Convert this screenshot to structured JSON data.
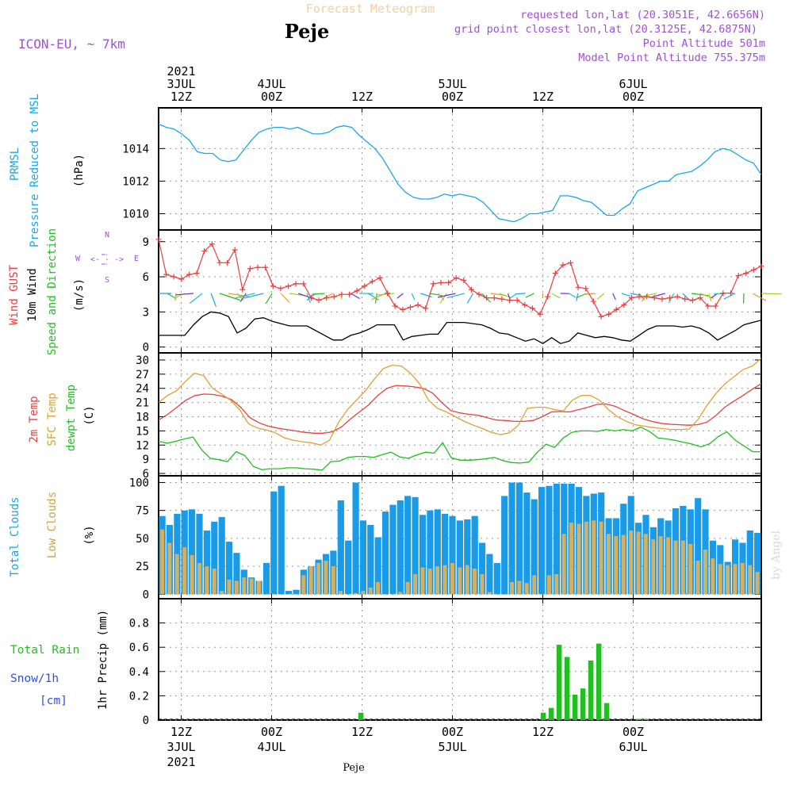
{
  "header": {
    "top_title": "Forecast Meteogram",
    "location": "Peje",
    "model": "ICON-EU, ~ 7km",
    "requested": "requested lon,lat (20.3051E, 42.6656N)",
    "grid_point": "grid point closest lon,lat (20.3125E, 42.6875N)",
    "point_altitude": "Point Altitude 501m",
    "model_altitude": "Model Point Altitude 755.375m",
    "footer_location": "Peje",
    "watermark": "by Angel"
  },
  "colors": {
    "pressure": "#1aa6e6",
    "gust": "#e84040",
    "wind": "#000000",
    "t2m": "#e84040",
    "sfc": "#e0a030",
    "dewpt": "#20c020",
    "total_clouds": "#1a9be8",
    "low_clouds": "#d4b060",
    "rain": "#20c020",
    "snow": "#3050e0",
    "meta": "#a050d0"
  },
  "time_axis": {
    "top_labels": [
      {
        "t": 3,
        "lines": [
          "2021",
          "3JUL",
          "12Z"
        ]
      },
      {
        "t": 15,
        "lines": [
          "4JUL",
          "00Z"
        ]
      },
      {
        "t": 27,
        "lines": [
          "12Z"
        ]
      },
      {
        "t": 39,
        "lines": [
          "5JUL",
          "00Z"
        ]
      },
      {
        "t": 51,
        "lines": [
          "12Z"
        ]
      },
      {
        "t": 63,
        "lines": [
          "6JUL",
          "00Z"
        ]
      }
    ],
    "bottom_labels": [
      {
        "t": 3,
        "lines": [
          "12Z",
          "3JUL",
          "2021"
        ]
      },
      {
        "t": 15,
        "lines": [
          "00Z",
          "4JUL"
        ]
      },
      {
        "t": 27,
        "lines": [
          "12Z"
        ]
      },
      {
        "t": 39,
        "lines": [
          "00Z",
          "5JUL"
        ]
      },
      {
        "t": 51,
        "lines": [
          "12Z"
        ]
      },
      {
        "t": 63,
        "lines": [
          "00Z",
          "6JUL"
        ]
      }
    ]
  },
  "panel_labels": {
    "pressure": {
      "l1": "PRMSL",
      "l2": "Pressure Reduced to MSL",
      "unit": "(hPa)"
    },
    "wind": {
      "l1": "Wind GUST",
      "l2": "10m Wind",
      "l3": "Speed and Direction",
      "unit": "(m/s)",
      "compass": {
        "n": "N",
        "s": "S",
        "w": "W",
        "e": "E",
        "arrows_h": "<- - ->",
        "arrows_v": "! !"
      }
    },
    "temp": {
      "l1": "2m Temp",
      "l2": "SFC Temp",
      "l3": "dewpt Temp",
      "unit": "(C)"
    },
    "clouds": {
      "l1": "Total Clouds",
      "l2": "Low Clouds",
      "unit": "(%)"
    },
    "precip": {
      "l1": "Total Rain",
      "l2": "Snow/1h",
      "l3": "[cm]",
      "unit": "1hr Precip (mm)"
    }
  },
  "chart_data": [
    {
      "type": "line",
      "name": "pressure",
      "x_unit": "hours after 2021-07-03 09Z",
      "ylim": [
        1009,
        1016.5
      ],
      "yticks": [
        1010,
        1012,
        1014
      ],
      "grid": true,
      "series": [
        {
          "name": "PRMSL",
          "values": [
            1015.5,
            1015.3,
            1015.2,
            1014.9,
            1014.5,
            1013.8,
            1013.7,
            1013.7,
            1013.3,
            1013.2,
            1013.3,
            1013.9,
            1014.5,
            1015.0,
            1015.2,
            1015.3,
            1015.3,
            1015.2,
            1015.3,
            1015.1,
            1014.9,
            1014.9,
            1015.0,
            1015.3,
            1015.4,
            1015.3,
            1014.8,
            1014.4,
            1014.0,
            1013.4,
            1012.6,
            1011.8,
            1011.3,
            1011.0,
            1010.9,
            1010.9,
            1011.0,
            1011.2,
            1011.1,
            1011.2,
            1011.1,
            1011.0,
            1010.7,
            1010.2,
            1009.7,
            1009.6,
            1009.5,
            1009.7,
            1010.0,
            1010.0,
            1010.1,
            1010.2,
            1011.1,
            1011.1,
            1011.0,
            1010.8,
            1010.7,
            1010.3,
            1009.9,
            1009.9,
            1010.3,
            1010.6,
            1011.4,
            1011.6,
            1011.8,
            1012.0,
            1012.0,
            1012.4,
            1012.5,
            1012.6,
            1012.9,
            1013.3,
            1013.8,
            1014.0,
            1013.9,
            1013.6,
            1013.3,
            1013.1,
            1012.4
          ]
        }
      ]
    },
    {
      "type": "line",
      "name": "wind",
      "x_unit": "hours after 2021-07-03 09Z",
      "ylim": [
        -0.5,
        10
      ],
      "yticks": [
        0,
        3,
        6,
        9
      ],
      "grid": true,
      "series": [
        {
          "name": "Wind GUST",
          "values": [
            9.2,
            6.2,
            6.0,
            5.8,
            6.2,
            6.3,
            8.2,
            8.8,
            7.2,
            7.2,
            8.3,
            4.9,
            6.7,
            6.8,
            6.8,
            5.2,
            5.0,
            5.2,
            5.4,
            5.4,
            4.2,
            4.0,
            4.2,
            4.3,
            4.5,
            4.5,
            4.8,
            5.2,
            5.6,
            5.9,
            4.6,
            3.5,
            3.2,
            3.4,
            3.6,
            3.3,
            5.4,
            5.5,
            5.5,
            5.9,
            5.7,
            4.9,
            4.5,
            4.2,
            4.2,
            4.1,
            4.0,
            4.0,
            3.6,
            3.3,
            2.8,
            4.3,
            6.3,
            7.0,
            7.2,
            5.1,
            5.0,
            3.9,
            2.6,
            2.8,
            3.2,
            3.6,
            4.2,
            4.3,
            4.3,
            4.2,
            4.1,
            4.2,
            4.3,
            4.1,
            4.0,
            4.2,
            3.5,
            3.5,
            4.6,
            4.6,
            6.1,
            6.3,
            6.6,
            6.9
          ]
        },
        {
          "name": "10m Wind",
          "values": [
            1.0,
            1.0,
            1.0,
            1.0,
            1.9,
            2.6,
            3.0,
            2.9,
            2.6,
            1.2,
            1.6,
            2.4,
            2.5,
            2.2,
            2.0,
            1.8,
            1.8,
            1.8,
            1.4,
            1.0,
            0.6,
            0.6,
            1.0,
            1.2,
            1.5,
            1.9,
            1.9,
            1.9,
            0.6,
            0.9,
            1.0,
            1.1,
            1.1,
            2.1,
            2.1,
            2.1,
            2.0,
            1.9,
            1.6,
            1.2,
            1.1,
            0.8,
            0.5,
            0.7,
            0.3,
            0.8,
            0.3,
            0.5,
            1.2,
            1.0,
            0.8,
            0.9,
            0.8,
            0.6,
            0.5,
            1.0,
            1.5,
            1.8,
            1.8,
            1.8,
            1.7,
            1.8,
            1.6,
            1.2,
            0.6,
            1.0,
            1.4,
            1.9,
            2.1,
            2.3
          ]
        }
      ]
    },
    {
      "type": "line",
      "name": "temperature",
      "x_unit": "hours after 2021-07-03 09Z",
      "ylim": [
        5.5,
        31.5
      ],
      "yticks": [
        6,
        9,
        12,
        15,
        18,
        21,
        24,
        27,
        30
      ],
      "grid": true,
      "series": [
        {
          "name": "2m Temp",
          "values": [
            17.3,
            18.5,
            20.0,
            21.5,
            22.5,
            22.8,
            22.7,
            22.3,
            21.6,
            20.0,
            17.8,
            16.7,
            16.0,
            15.6,
            15.3,
            15.0,
            14.7,
            14.5,
            14.5,
            14.8,
            15.8,
            17.5,
            19.0,
            20.5,
            22.5,
            24.0,
            24.6,
            24.5,
            24.3,
            24.0,
            23.0,
            21.0,
            19.3,
            18.8,
            18.5,
            18.3,
            17.8,
            17.3,
            17.2,
            17.0,
            17.0,
            17.2,
            18.0,
            19.0,
            19.1,
            19.0,
            19.5,
            20.0,
            20.6,
            20.7,
            20.2,
            19.3,
            18.5,
            17.6,
            17.0,
            16.6,
            16.4,
            16.3,
            16.2,
            16.3,
            16.8,
            18.2,
            20.0,
            21.3,
            22.5,
            23.8,
            25.0
          ]
        },
        {
          "name": "SFC Temp",
          "values": [
            21.0,
            22.5,
            23.5,
            25.5,
            27.2,
            26.7,
            24.0,
            22.8,
            21.5,
            19.5,
            16.5,
            15.6,
            15.2,
            14.6,
            13.5,
            13.0,
            12.7,
            12.5,
            12.0,
            13.0,
            16.8,
            19.5,
            21.5,
            23.5,
            26.0,
            28.2,
            28.9,
            28.7,
            27.2,
            25.0,
            21.5,
            19.8,
            19.0,
            18.0,
            17.0,
            16.2,
            15.5,
            14.7,
            14.2,
            14.6,
            16.2,
            19.8,
            20.0,
            20.0,
            19.5,
            19.2,
            21.5,
            22.5,
            22.5,
            21.5,
            19.5,
            18.0,
            17.0,
            16.3,
            16.0,
            15.7,
            15.5,
            15.3,
            15.3,
            15.4,
            17.5,
            20.5,
            23.0,
            25.0,
            26.5,
            28.0,
            28.7,
            30.4
          ]
        },
        {
          "name": "dewpt Temp",
          "values": [
            12.8,
            12.4,
            12.8,
            13.3,
            13.7,
            11.0,
            9.2,
            8.9,
            8.5,
            10.6,
            9.8,
            7.5,
            6.8,
            7.0,
            7.0,
            7.2,
            7.2,
            7.0,
            6.9,
            6.7,
            8.5,
            8.6,
            9.4,
            9.6,
            9.6,
            9.4,
            10.0,
            10.5,
            9.5,
            9.2,
            9.9,
            10.5,
            10.3,
            12.5,
            9.3,
            8.8,
            8.8,
            8.9,
            9.1,
            9.4,
            8.7,
            8.3,
            8.2,
            8.4,
            10.5,
            12.2,
            11.5,
            13.5,
            14.7,
            15.0,
            15.0,
            14.9,
            15.3,
            15.0,
            15.3,
            15.0,
            15.8,
            14.9,
            13.5,
            13.3,
            13.0,
            12.6,
            12.2,
            11.6,
            12.3,
            13.8,
            14.8,
            13.0,
            11.8,
            10.6,
            10.6
          ]
        }
      ]
    },
    {
      "type": "bar",
      "name": "clouds",
      "x_unit": "hours after 2021-07-03 09Z",
      "ylim": [
        -4,
        106
      ],
      "yticks": [
        0,
        25,
        50,
        75,
        100
      ],
      "grid": true,
      "series": [
        {
          "name": "Total Clouds",
          "values": [
            70,
            62,
            72,
            75,
            76,
            72,
            57,
            65,
            69,
            47,
            37,
            22,
            15,
            12,
            28,
            92,
            97,
            3,
            4,
            22,
            25,
            31,
            36,
            39,
            84,
            48,
            100,
            66,
            62,
            51,
            74,
            80,
            84,
            88,
            87,
            71,
            75,
            76,
            72,
            70,
            66,
            67,
            70,
            46,
            36,
            28,
            88,
            100,
            100,
            91,
            85,
            96,
            97,
            99,
            99,
            99,
            96,
            88,
            90,
            91,
            68,
            68,
            81,
            88,
            64,
            71,
            60,
            68,
            66,
            77,
            79,
            76,
            86,
            76,
            48,
            44,
            29,
            49,
            46,
            57,
            55
          ]
        },
        {
          "name": "Low Clouds",
          "values": [
            58,
            46,
            36,
            42,
            35,
            28,
            25,
            23,
            3,
            13,
            12,
            15,
            14,
            12,
            0,
            0,
            0,
            0,
            0,
            17,
            25,
            28,
            30,
            25,
            3,
            0,
            1,
            3,
            6,
            11,
            0,
            0,
            2,
            11,
            18,
            24,
            23,
            25,
            26,
            28,
            24,
            26,
            23,
            18,
            2,
            0,
            0,
            11,
            12,
            10,
            17,
            0,
            17,
            18,
            54,
            64,
            63,
            65,
            66,
            65,
            54,
            52,
            53,
            57,
            56,
            54,
            49,
            52,
            51,
            48,
            48,
            45,
            30,
            40,
            32,
            27,
            26,
            27,
            28,
            26,
            20
          ]
        }
      ]
    },
    {
      "type": "bar",
      "name": "precipitation",
      "x_unit": "hours after 2021-07-03 09Z",
      "ylim": [
        0,
        1.0
      ],
      "yticks": [
        0,
        0.2,
        0.4,
        0.6,
        0.8
      ],
      "grid": true,
      "series": [
        {
          "name": "Total Rain",
          "values": [
            0,
            0,
            0,
            0,
            0,
            0,
            0,
            0,
            0,
            0,
            0,
            0,
            0,
            0,
            0,
            0,
            0,
            0,
            0,
            0,
            0,
            0,
            0,
            0,
            0,
            0.06,
            0,
            0,
            0,
            0,
            0,
            0,
            0,
            0,
            0,
            0,
            0,
            0,
            0,
            0,
            0,
            0,
            0,
            0,
            0,
            0,
            0,
            0,
            0.06,
            0.1,
            0.62,
            0.52,
            0.21,
            0.26,
            0.49,
            0.63,
            0.14,
            0,
            0,
            0,
            0.01,
            0.01,
            0,
            0,
            0,
            0,
            0,
            0,
            0,
            0,
            0,
            0,
            0,
            0,
            0,
            0
          ]
        }
      ]
    }
  ]
}
